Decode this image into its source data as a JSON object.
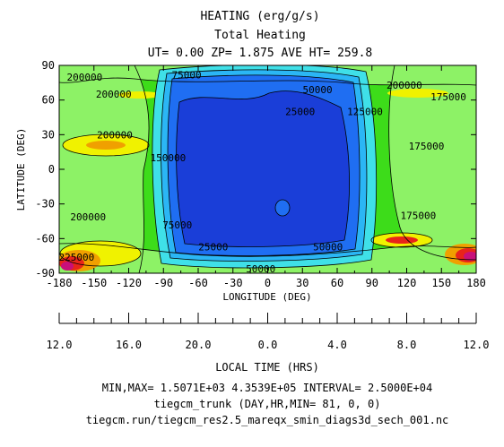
{
  "header": {
    "title": "HEATING (erg/g/s)",
    "subtitle": "Total Heating",
    "info": "UT= 0.00 ZP=  1.875 AVE HT= 259.8"
  },
  "chart_data": {
    "type": "heatmap",
    "xlabel": "LONGITUDE (DEG)",
    "ylabel": "LATITUDE (DEG)",
    "xlim": [
      -180,
      180
    ],
    "ylim": [
      -90,
      90
    ],
    "x_ticks": [
      "-180",
      "-150",
      "-120",
      "-90",
      "-60",
      "-30",
      "0",
      "30",
      "60",
      "90",
      "120",
      "150",
      "180"
    ],
    "y_ticks": [
      "90",
      "60",
      "30",
      "0",
      "-30",
      "-60",
      "-90"
    ],
    "contour_labels": [
      {
        "text": "200000",
        "lon": -158,
        "lat": 80
      },
      {
        "text": "200000",
        "lon": -133,
        "lat": 65
      },
      {
        "text": "75000",
        "lon": -70,
        "lat": 82
      },
      {
        "text": "50000",
        "lon": 43,
        "lat": 69
      },
      {
        "text": "25000",
        "lon": 28,
        "lat": 50
      },
      {
        "text": "200000",
        "lon": 118,
        "lat": 73
      },
      {
        "text": "175000",
        "lon": 156,
        "lat": 63
      },
      {
        "text": "125000",
        "lon": 84,
        "lat": 50
      },
      {
        "text": "200000",
        "lon": -132,
        "lat": 30
      },
      {
        "text": "175000",
        "lon": 137,
        "lat": 20
      },
      {
        "text": "150000",
        "lon": -86,
        "lat": 10
      },
      {
        "text": "200000",
        "lon": -155,
        "lat": -41
      },
      {
        "text": "75000",
        "lon": -78,
        "lat": -48
      },
      {
        "text": "175000",
        "lon": 130,
        "lat": -40
      },
      {
        "text": "25000",
        "lon": -47,
        "lat": -67
      },
      {
        "text": "50000",
        "lon": 52,
        "lat": -67
      },
      {
        "text": "225000",
        "lon": -165,
        "lat": -76
      },
      {
        "text": "50000",
        "lon": -6,
        "lat": -86
      }
    ],
    "local_time": {
      "label": "LOCAL TIME (HRS)",
      "ticks": [
        "12.0",
        "16.0",
        "20.0",
        "0.0",
        "4.0",
        "8.0",
        "12.0"
      ]
    },
    "colors": {
      "green": "#3ddc1a",
      "light_green": "#8df266",
      "yellow": "#f0f200",
      "orange": "#f0a000",
      "red": "#e8241a",
      "magenta": "#c8107a",
      "cyan": "#3fe0e8",
      "light_blue": "#2bb6f5",
      "mid_blue": "#1f6ef2",
      "deep_blue": "#1a3ed8"
    }
  },
  "footer": {
    "minmax": "MIN,MAX=  1.5071E+03  4.3539E+05 INTERVAL=  2.5000E+04",
    "run": "tiegcm_trunk (DAY,HR,MIN= 81, 0, 0)",
    "file": "tiegcm.run/tiegcm_res2.5_mareqx_smin_diags3d_sech_001.nc"
  }
}
